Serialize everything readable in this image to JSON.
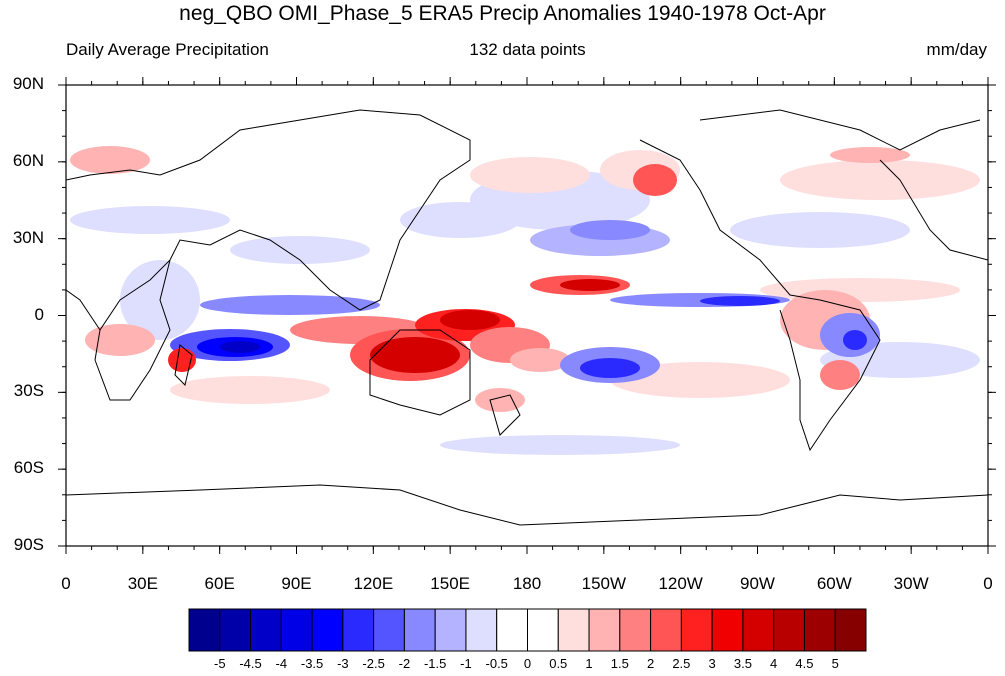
{
  "title": "neg_QBO OMI_Phase_5 ERA5 Precip Anomalies 1940-1978 Oct-Apr",
  "left_subtitle": "Daily Average Precipitation",
  "center_subtitle": "132 data points",
  "right_subtitle": "mm/day",
  "lat_labels": [
    "90N",
    "60N",
    "30N",
    "0",
    "30S",
    "60S",
    "90S"
  ],
  "lon_labels": [
    "0",
    "30E",
    "60E",
    "90E",
    "120E",
    "150E",
    "180",
    "150W",
    "120W",
    "90W",
    "60W",
    "30W",
    "0"
  ],
  "colorbar": {
    "labels": [
      "-5",
      "-4.5",
      "-4",
      "-3.5",
      "-3",
      "-2.5",
      "-2",
      "-1.5",
      "-1",
      "-0.5",
      "0",
      "0.5",
      "1",
      "1.5",
      "2",
      "2.5",
      "3",
      "3.5",
      "4",
      "4.5",
      "5"
    ],
    "colors": [
      "#00008f",
      "#0000a8",
      "#0000c8",
      "#0000e6",
      "#0000ff",
      "#2a2aff",
      "#5555ff",
      "#8888ff",
      "#b3b3ff",
      "#dedeff",
      "#ffffff",
      "#ffffff",
      "#ffdede",
      "#ffb3b3",
      "#ff8080",
      "#ff5555",
      "#ff2020",
      "#f00000",
      "#d40000",
      "#b80000",
      "#9c0000",
      "#870000"
    ]
  }
}
